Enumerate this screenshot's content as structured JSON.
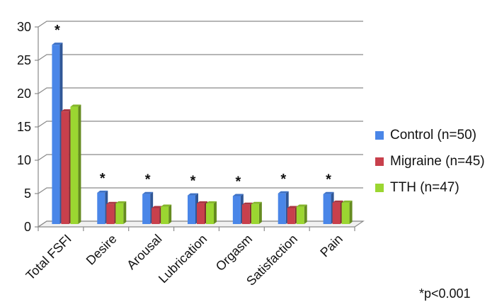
{
  "chart_data": {
    "type": "bar",
    "categories": [
      "Total FSFI",
      "Desire",
      "Arousal",
      "Lubrication",
      "Orgasm",
      "Satisfaction",
      "Pain"
    ],
    "series": [
      {
        "name": "Control (n=50)",
        "color": "#4a86e8",
        "values": [
          26.9,
          4.7,
          4.5,
          4.3,
          4.2,
          4.6,
          4.5
        ]
      },
      {
        "name": "Migraine (n=45)",
        "color": "#c8404c",
        "values": [
          16.9,
          3.0,
          2.4,
          3.1,
          2.9,
          2.4,
          3.2
        ]
      },
      {
        "name": "TTH (n=47)",
        "color": "#9bd631",
        "values": [
          17.6,
          3.1,
          2.6,
          3.1,
          3.0,
          2.6,
          3.2
        ]
      }
    ],
    "significance_marks": [
      "*",
      "*",
      "*",
      "*",
      "*",
      "*",
      "*"
    ],
    "ylim": [
      0,
      30
    ],
    "yticks": [
      0,
      5,
      10,
      15,
      20,
      25,
      30
    ],
    "grid": true,
    "legend_position": "right",
    "footnote": "*p<0.001"
  }
}
